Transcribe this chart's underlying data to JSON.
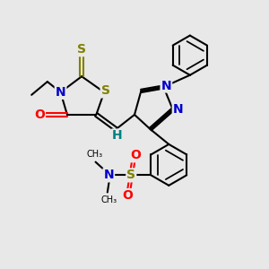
{
  "bg_color": "#e8e8e8",
  "atom_colors": {
    "S": "#808000",
    "N": "#0000cc",
    "O": "#ff0000",
    "C": "#000000",
    "H": "#008080"
  },
  "bond_color": "#000000",
  "bond_width": 1.5,
  "font_size_atom": 10,
  "fig_size": [
    3.0,
    3.0
  ],
  "dpi": 100,
  "xlim": [
    0,
    10
  ],
  "ylim": [
    0,
    10
  ]
}
